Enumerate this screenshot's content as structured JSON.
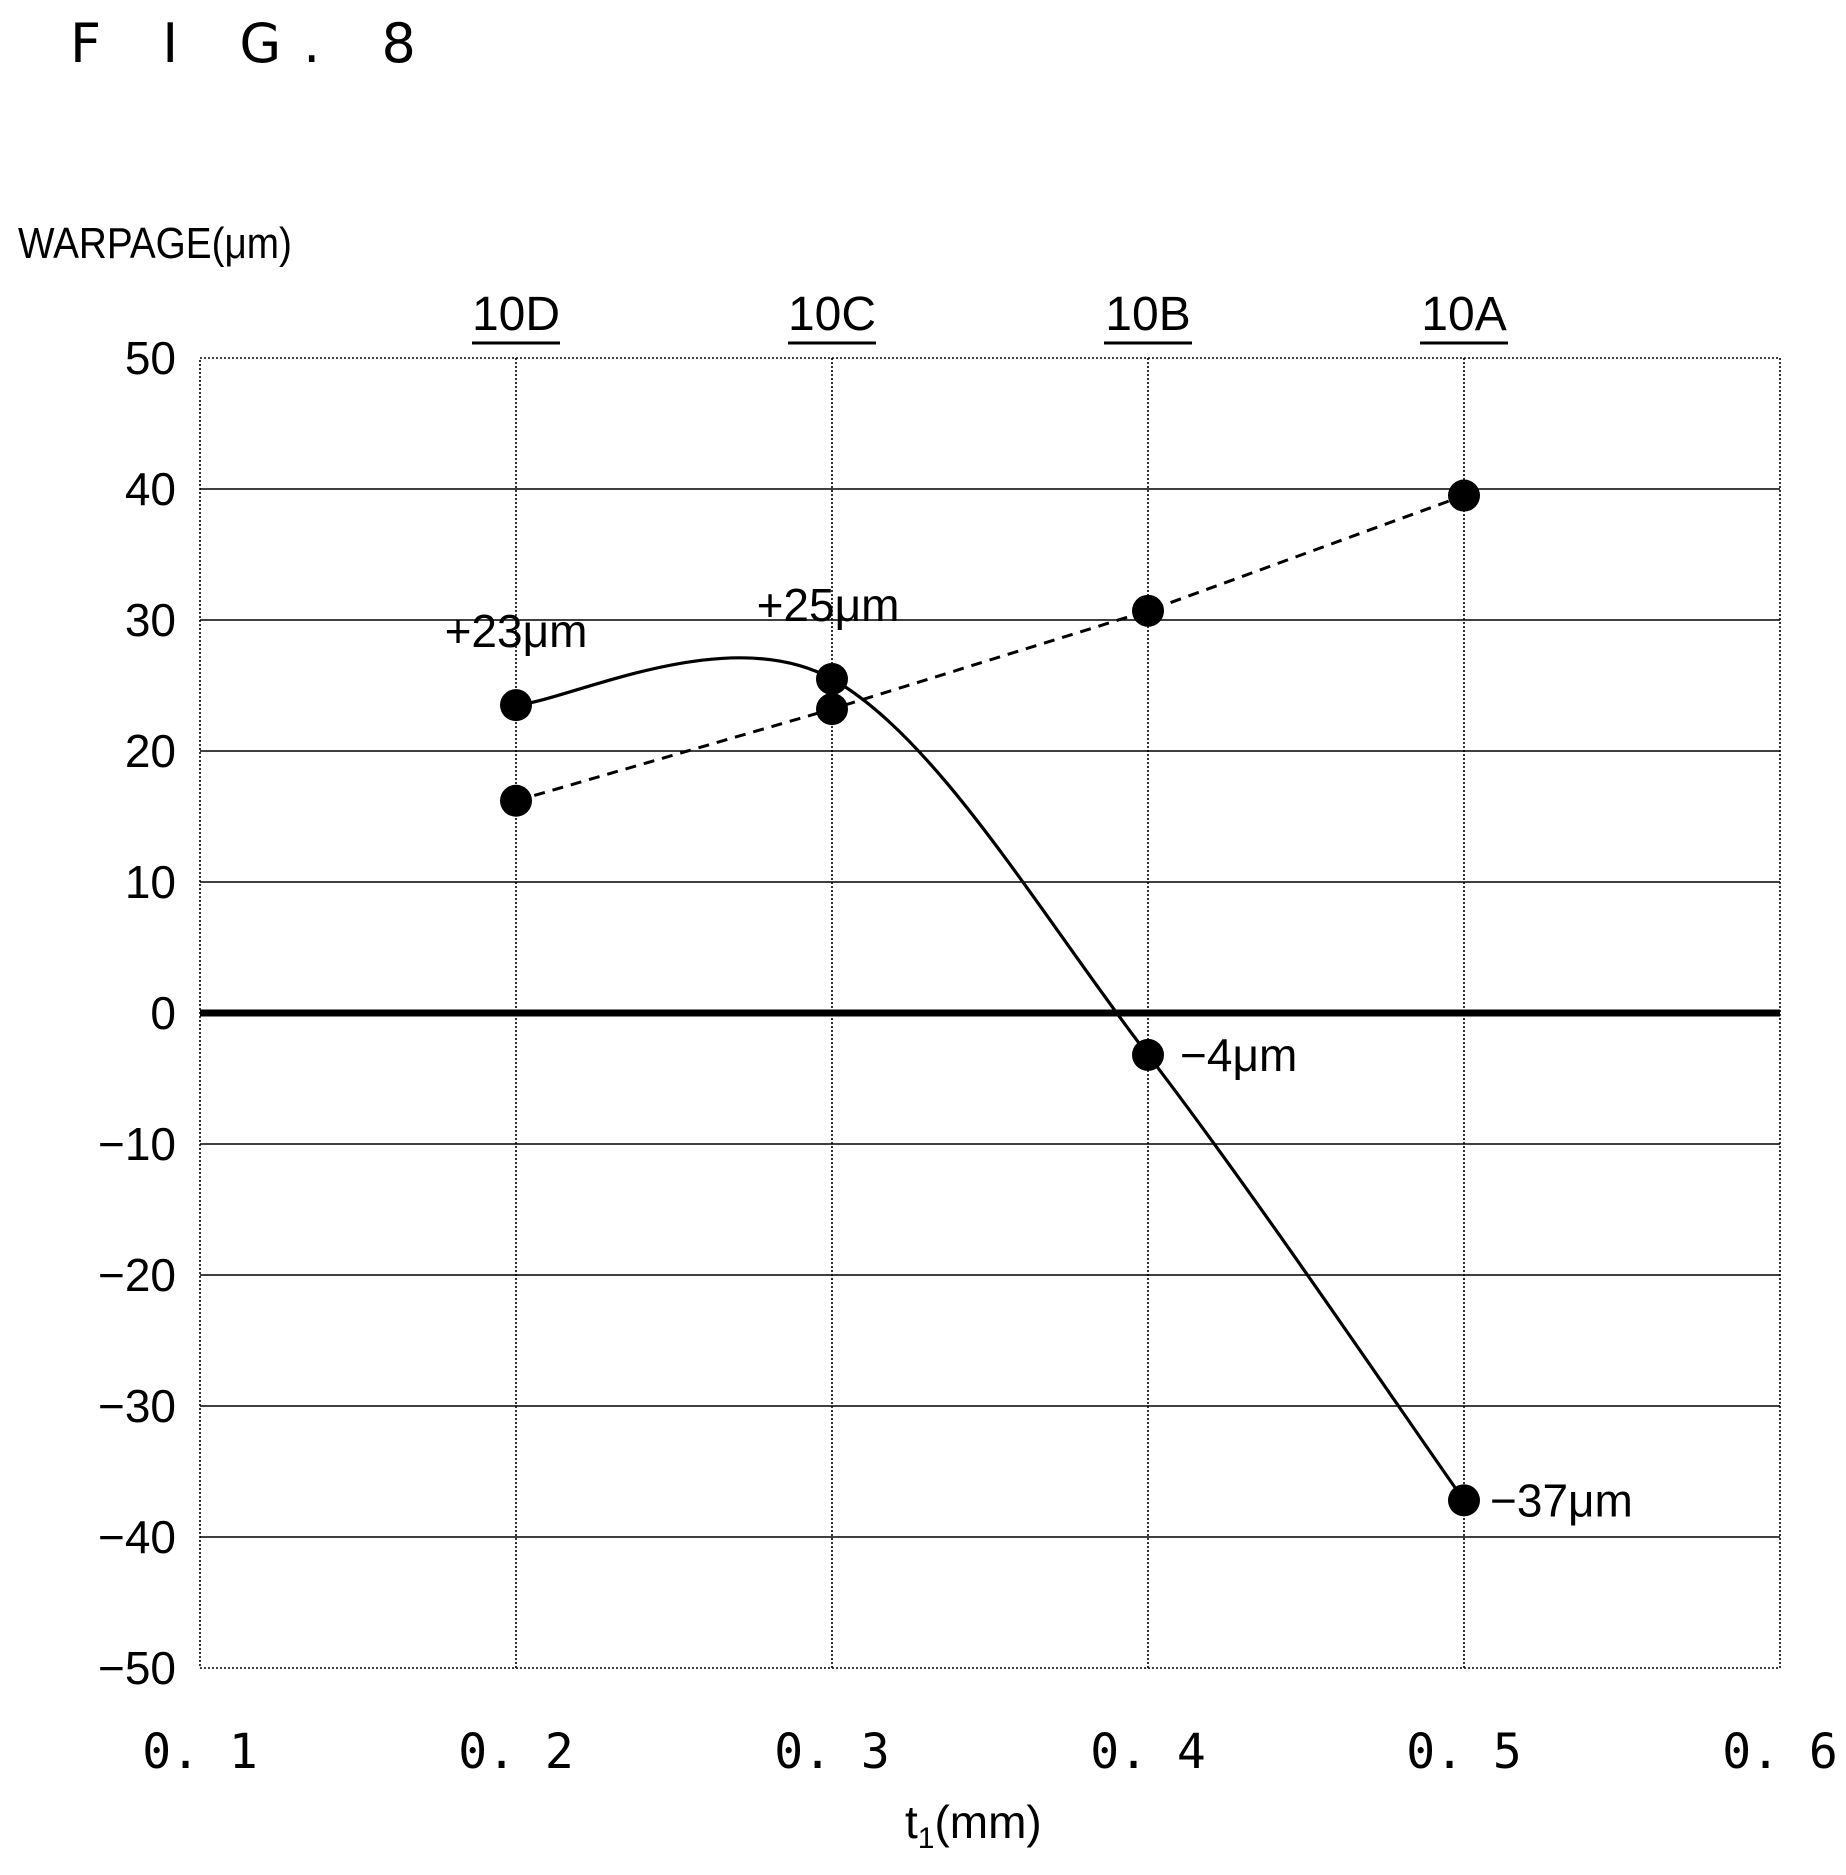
{
  "figure_label": "F I G. 8",
  "chart_data": {
    "type": "line",
    "ylabel": "WARPAGE(μm)",
    "xlabel": "t1(mm)",
    "xlabel_main": "t",
    "xlabel_sub": "1",
    "xlabel_unit": "(mm)",
    "xlim": [
      0.1,
      0.6
    ],
    "ylim": [
      -50,
      50
    ],
    "x_ticks": [
      0.1,
      0.2,
      0.3,
      0.4,
      0.5,
      0.6
    ],
    "x_tick_labels": [
      "0. 1",
      "0. 2",
      "0. 3",
      "0. 4",
      "0. 5",
      "0. 6"
    ],
    "y_ticks": [
      50,
      40,
      30,
      20,
      10,
      0,
      -10,
      -20,
      -30,
      -40,
      -50
    ],
    "y_tick_labels": [
      "50",
      "40",
      "30",
      "20",
      "10",
      "0",
      "−10",
      "−20",
      "−30",
      "−40",
      "−50"
    ],
    "grid": true,
    "zero_line_bold": true,
    "top_labels": [
      {
        "x": 0.2,
        "text": "10D"
      },
      {
        "x": 0.3,
        "text": "10C"
      },
      {
        "x": 0.4,
        "text": "10B"
      },
      {
        "x": 0.5,
        "text": "10A"
      }
    ],
    "series": [
      {
        "style": "solid",
        "x": [
          0.2,
          0.3,
          0.4,
          0.5
        ],
        "values": [
          23.5,
          25.5,
          -3.2,
          -37.2
        ]
      },
      {
        "style": "dashed",
        "x": [
          0.2,
          0.3,
          0.4,
          0.5
        ],
        "values": [
          16.2,
          23.2,
          30.7,
          39.5
        ]
      }
    ],
    "annotations": [
      {
        "text": "+23μm",
        "x": 0.2,
        "y": 23
      },
      {
        "text": "+25μm",
        "x": 0.3,
        "y": 25
      },
      {
        "text": "−4μm",
        "x": 0.4,
        "y": -4
      },
      {
        "text": "−37μm",
        "x": 0.5,
        "y": -37
      }
    ]
  }
}
